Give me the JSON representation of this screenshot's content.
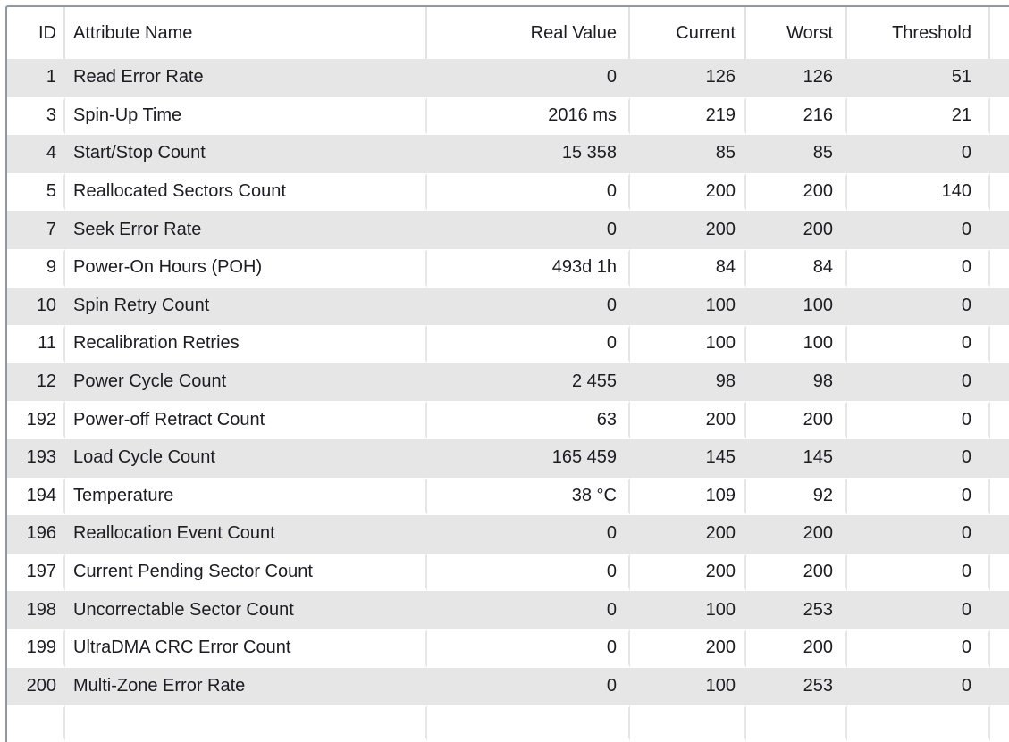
{
  "panel": {
    "kind": "smart-attribute-list",
    "colors": {
      "frame_border": "#8f98a1",
      "row_stripe": "#e6e6e6",
      "grid_line": "#e2e2e2",
      "text": "#1c1c22",
      "background": "#ffffff"
    }
  },
  "table": {
    "columns": [
      {
        "key": "id",
        "label": "ID",
        "align": "right"
      },
      {
        "key": "name",
        "label": "Attribute Name",
        "align": "left"
      },
      {
        "key": "real",
        "label": "Real Value",
        "align": "right"
      },
      {
        "key": "current",
        "label": "Current",
        "align": "right"
      },
      {
        "key": "worst",
        "label": "Worst",
        "align": "right"
      },
      {
        "key": "threshold",
        "label": "Threshold",
        "align": "right"
      }
    ],
    "rows": [
      {
        "id": "1",
        "name": "Read Error Rate",
        "real": "0",
        "current": "126",
        "worst": "126",
        "threshold": "51"
      },
      {
        "id": "3",
        "name": "Spin-Up Time",
        "real": "2016 ms",
        "current": "219",
        "worst": "216",
        "threshold": "21"
      },
      {
        "id": "4",
        "name": "Start/Stop Count",
        "real": "15 358",
        "current": "85",
        "worst": "85",
        "threshold": "0"
      },
      {
        "id": "5",
        "name": "Reallocated Sectors Count",
        "real": "0",
        "current": "200",
        "worst": "200",
        "threshold": "140"
      },
      {
        "id": "7",
        "name": "Seek Error Rate",
        "real": "0",
        "current": "200",
        "worst": "200",
        "threshold": "0"
      },
      {
        "id": "9",
        "name": "Power-On Hours (POH)",
        "real": "493d 1h",
        "current": "84",
        "worst": "84",
        "threshold": "0"
      },
      {
        "id": "10",
        "name": "Spin Retry Count",
        "real": "0",
        "current": "100",
        "worst": "100",
        "threshold": "0"
      },
      {
        "id": "11",
        "name": "Recalibration Retries",
        "real": "0",
        "current": "100",
        "worst": "100",
        "threshold": "0"
      },
      {
        "id": "12",
        "name": "Power Cycle Count",
        "real": "2 455",
        "current": "98",
        "worst": "98",
        "threshold": "0"
      },
      {
        "id": "192",
        "name": "Power-off Retract Count",
        "real": "63",
        "current": "200",
        "worst": "200",
        "threshold": "0"
      },
      {
        "id": "193",
        "name": "Load Cycle Count",
        "real": "165 459",
        "current": "145",
        "worst": "145",
        "threshold": "0"
      },
      {
        "id": "194",
        "name": "Temperature",
        "real": "38 °C",
        "current": "109",
        "worst": "92",
        "threshold": "0"
      },
      {
        "id": "196",
        "name": "Reallocation Event Count",
        "real": "0",
        "current": "200",
        "worst": "200",
        "threshold": "0"
      },
      {
        "id": "197",
        "name": "Current Pending Sector Count",
        "real": "0",
        "current": "200",
        "worst": "200",
        "threshold": "0"
      },
      {
        "id": "198",
        "name": "Uncorrectable Sector Count",
        "real": "0",
        "current": "100",
        "worst": "253",
        "threshold": "0"
      },
      {
        "id": "199",
        "name": "UltraDMA CRC Error Count",
        "real": "0",
        "current": "200",
        "worst": "200",
        "threshold": "0"
      },
      {
        "id": "200",
        "name": "Multi-Zone Error Rate",
        "real": "0",
        "current": "100",
        "worst": "253",
        "threshold": "0"
      }
    ],
    "first_row_striped": true
  }
}
